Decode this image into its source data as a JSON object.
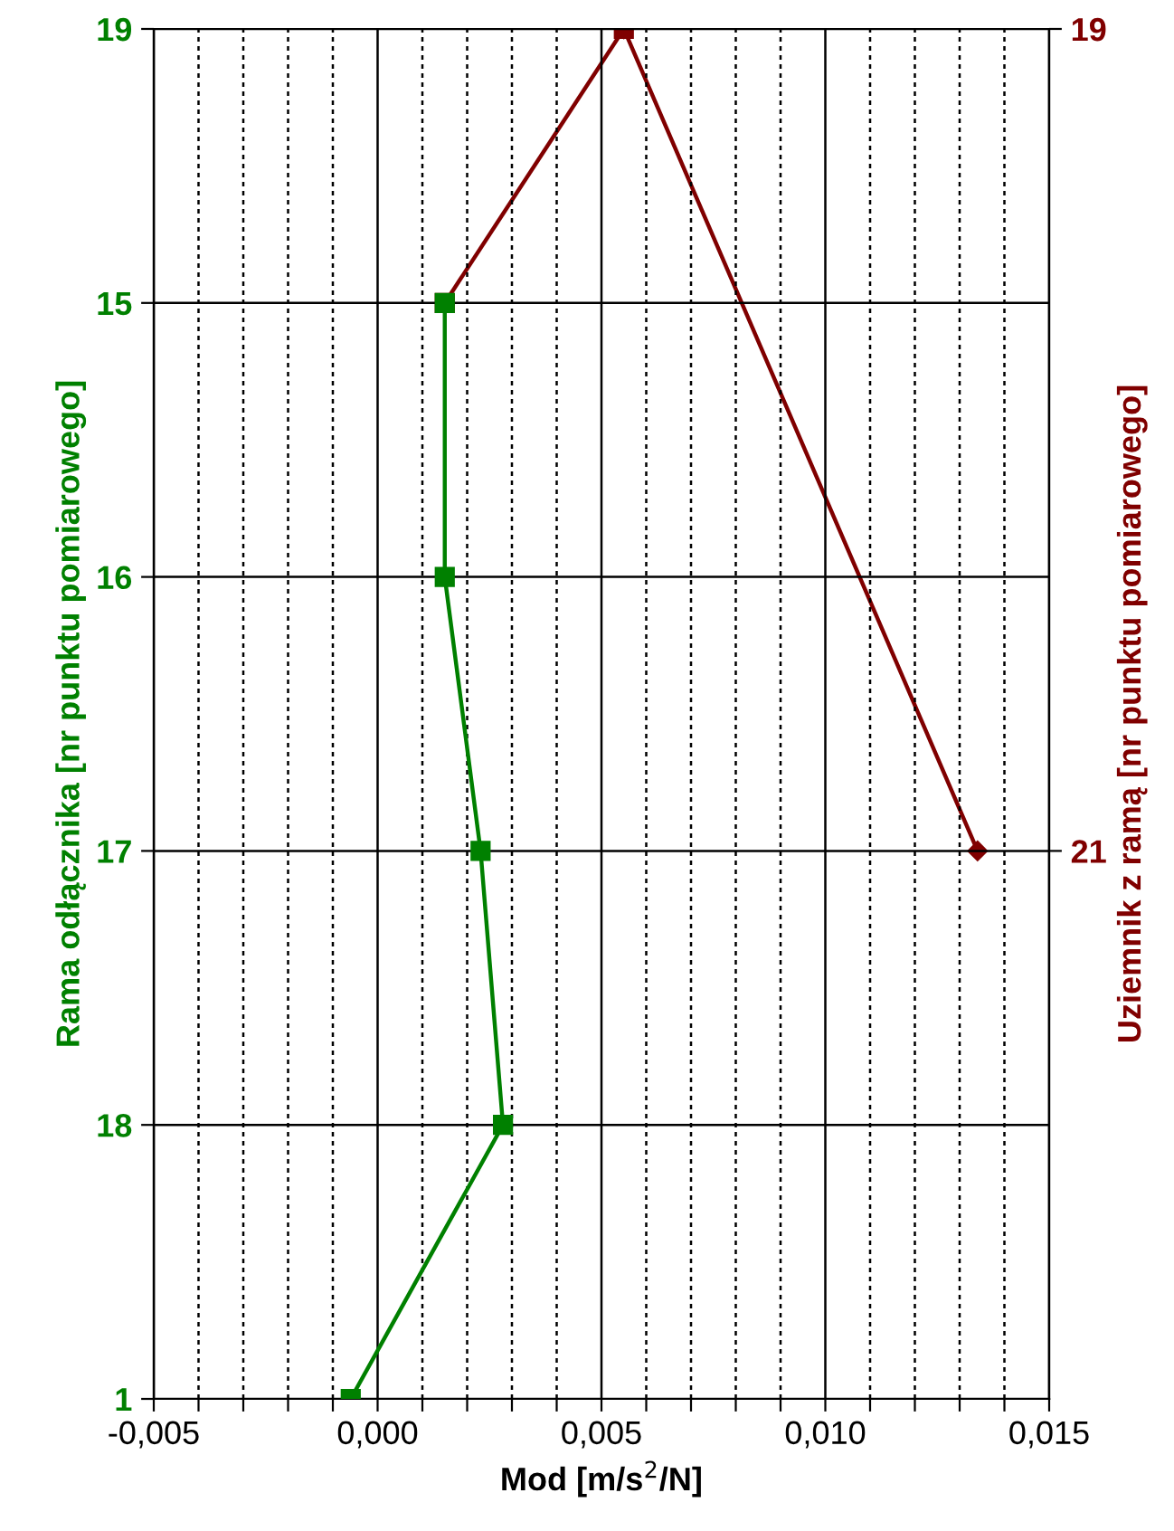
{
  "chart_data": {
    "type": "line",
    "orientation": "horizontal",
    "xlabel": "Mod [m/s$^{2}$/N]",
    "ylabel": "Rama odłącznika [nr punktu pomiarowego]",
    "y2label": "Uziemnik z ramą [nr punktu pomiarowego]",
    "categories": [
      "19",
      "15",
      "16",
      "17",
      "18",
      "1"
    ],
    "y2_categories": [
      "19",
      null,
      null,
      "21",
      null,
      null
    ],
    "xlim": [
      -0.005,
      0.015
    ],
    "xticks": [
      {
        "value": -0.005,
        "label": "-0,005"
      },
      {
        "value": -0.004,
        "label": null
      },
      {
        "value": -0.003,
        "label": null
      },
      {
        "value": -0.002,
        "label": null
      },
      {
        "value": -0.001,
        "label": null
      },
      {
        "value": 0.0,
        "label": "0,000"
      },
      {
        "value": 0.001,
        "label": null
      },
      {
        "value": 0.002,
        "label": null
      },
      {
        "value": 0.003,
        "label": null
      },
      {
        "value": 0.004,
        "label": null
      },
      {
        "value": 0.005,
        "label": "0,005"
      },
      {
        "value": 0.006,
        "label": null
      },
      {
        "value": 0.007,
        "label": null
      },
      {
        "value": 0.008,
        "label": null
      },
      {
        "value": 0.009,
        "label": null
      },
      {
        "value": 0.01,
        "label": "0,010"
      },
      {
        "value": 0.011,
        "label": null
      },
      {
        "value": 0.012,
        "label": null
      },
      {
        "value": 0.013,
        "label": null
      },
      {
        "value": 0.014,
        "label": null
      },
      {
        "value": 0.015,
        "label": "0,015"
      }
    ],
    "grid": true,
    "marker": "square",
    "line_style": "solid",
    "series": [
      {
        "color": "#008000",
        "values": [
          null,
          0.0015,
          0.0015,
          0.0023,
          0.0028,
          -0.0006
        ]
      },
      {
        "color": "#800000",
        "axis": "y2",
        "marker": "diamond",
        "values": [
          0.0055,
          null,
          null,
          0.0134,
          null,
          null
        ]
      },
      {
        "color": "#800000",
        "axis": "y2",
        "values": [
          0.0055,
          0.0015,
          null,
          null,
          null,
          null
        ]
      }
    ]
  }
}
